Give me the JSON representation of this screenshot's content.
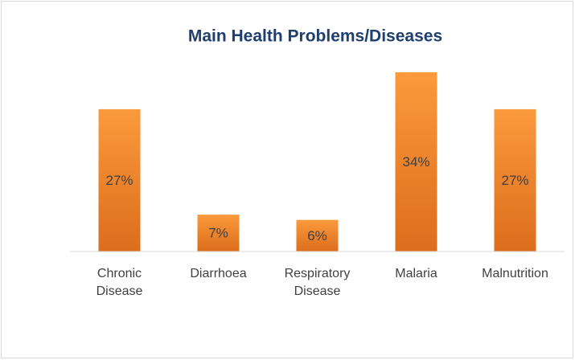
{
  "chart_data": {
    "type": "bar",
    "title": "Main Health Problems/Diseases",
    "categories": [
      "Chronic Disease",
      "Diarrhoea",
      "Respiratory Disease",
      "Malaria",
      "Malnutrition"
    ],
    "values": [
      27,
      7,
      6,
      34,
      27
    ],
    "value_labels": [
      "27%",
      "7%",
      "6%",
      "34%",
      "27%"
    ],
    "color": "#f28a2e"
  }
}
